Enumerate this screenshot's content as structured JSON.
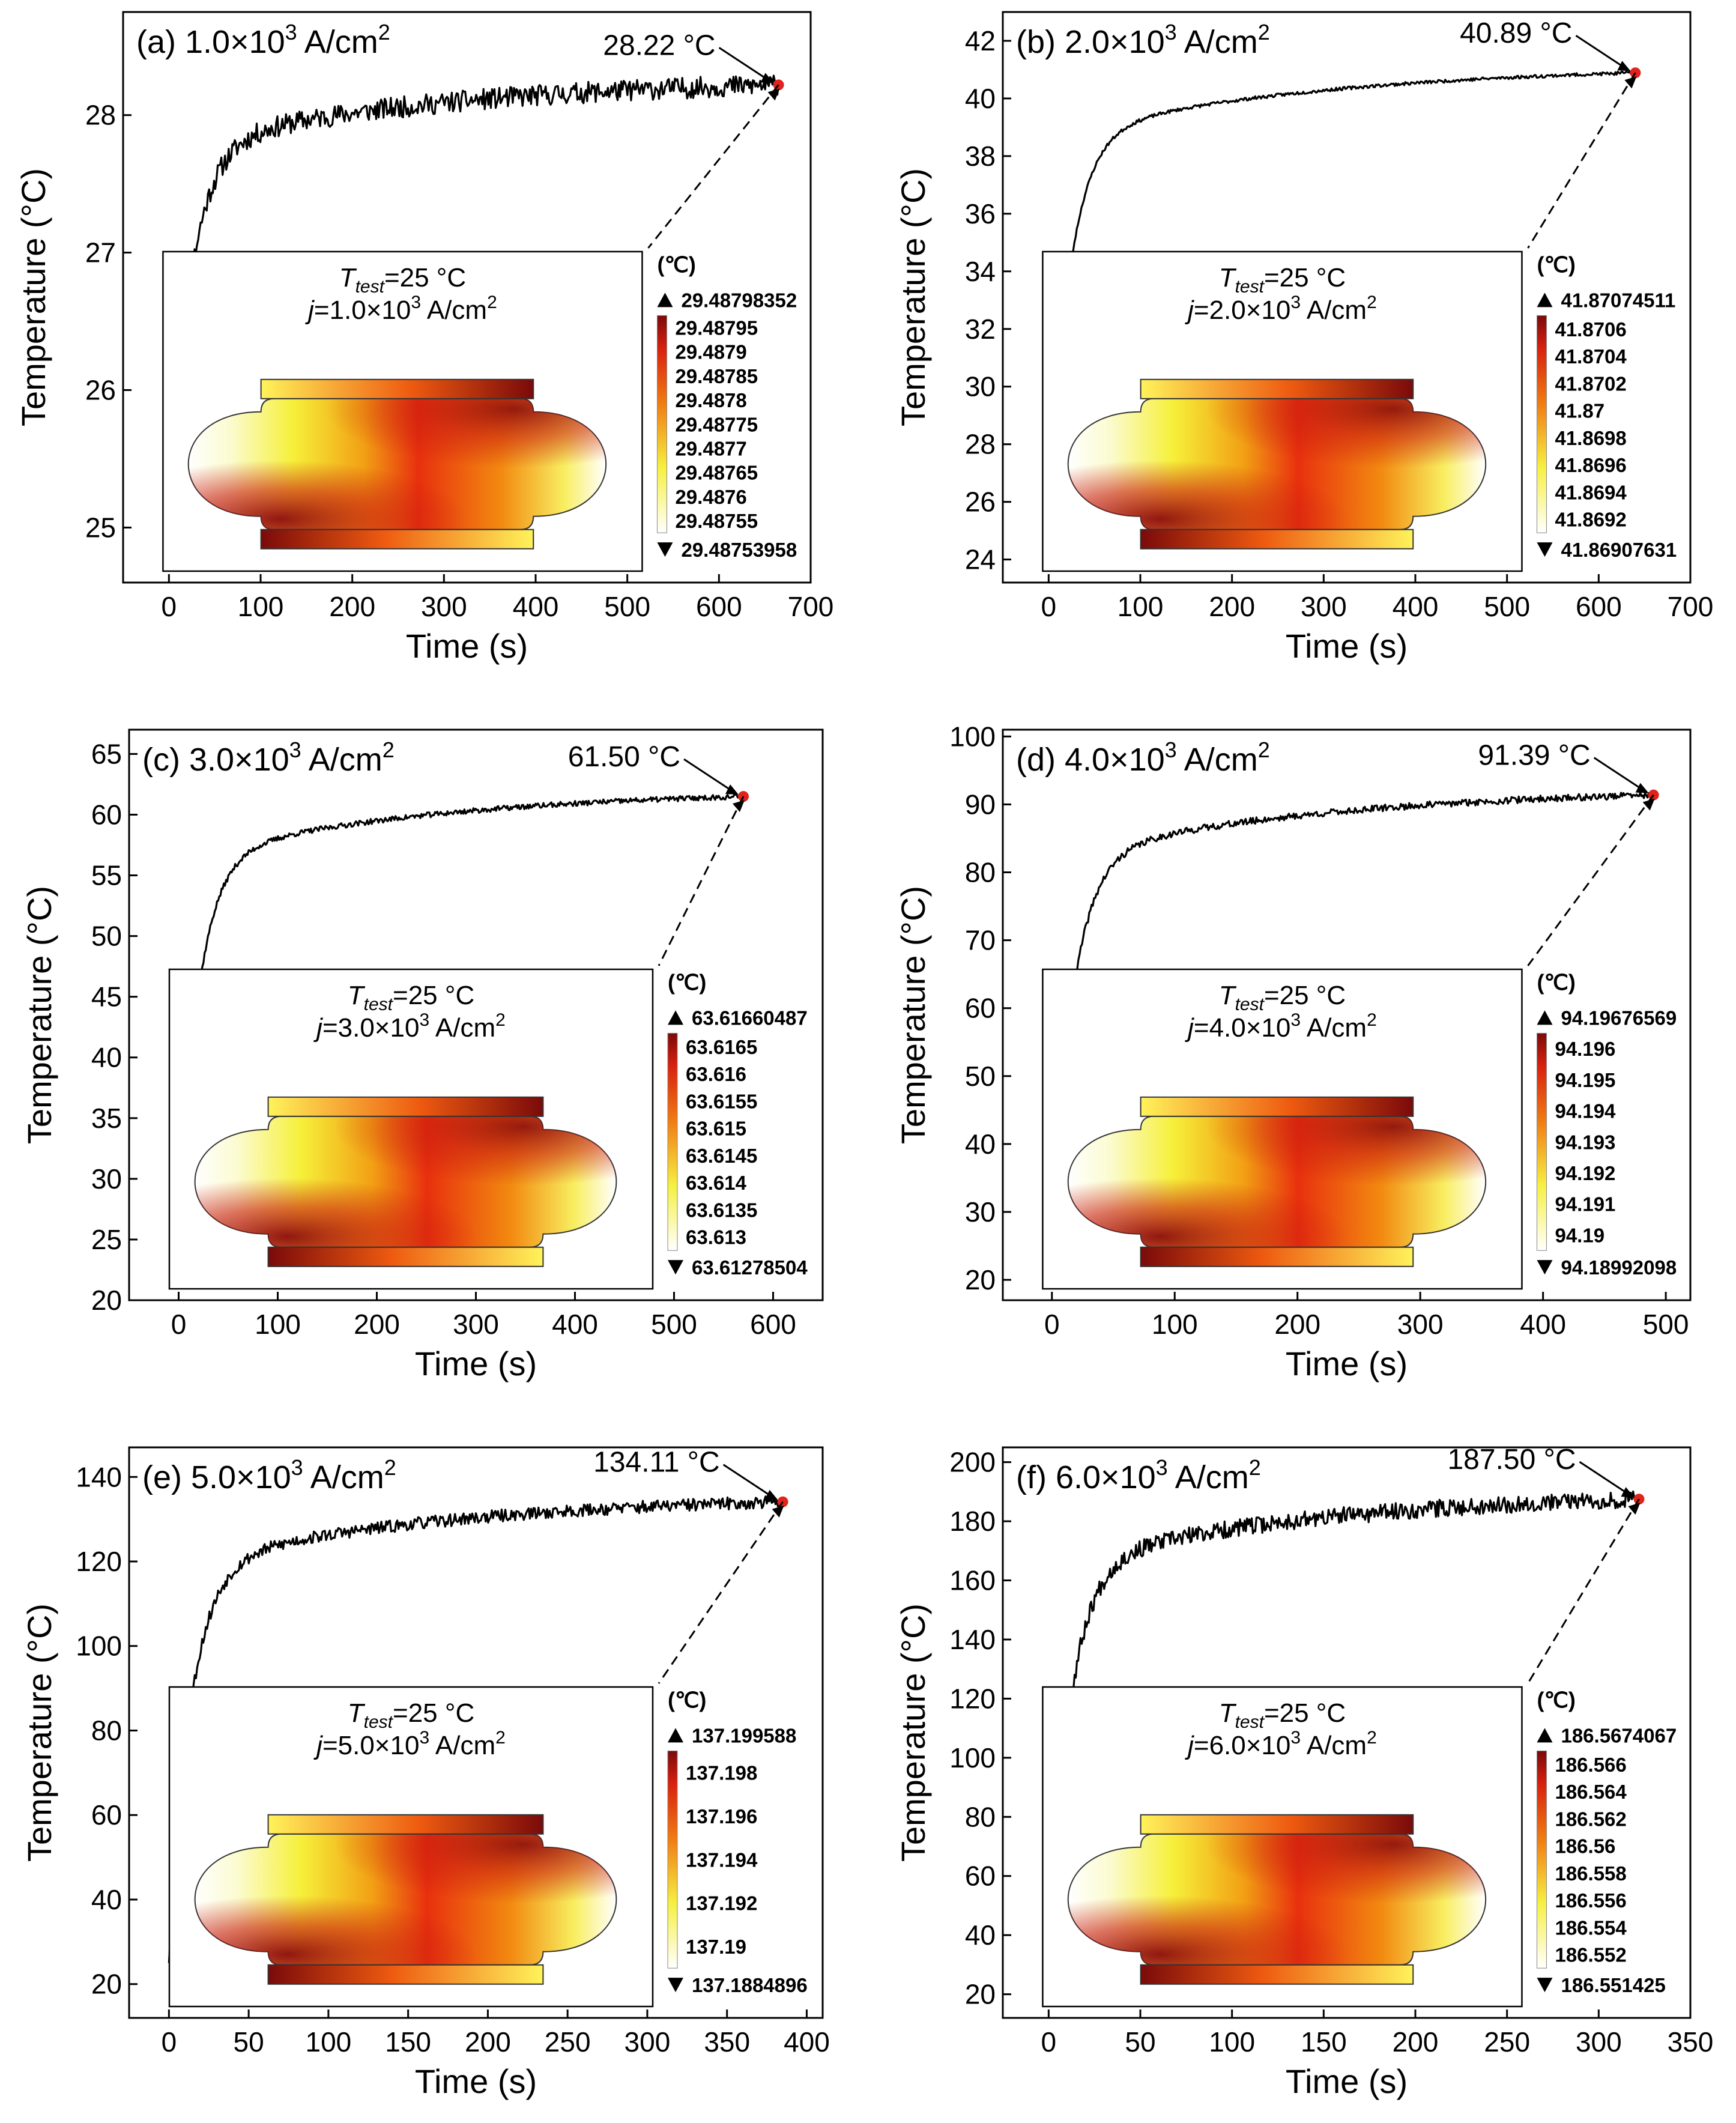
{
  "chart_data": [
    {
      "type": "line",
      "panel": "(a)",
      "current_mantissa": "1.0",
      "current_exponent": "3",
      "current_unit": "A/cm",
      "xlabel": "Time (s)",
      "ylabel": "Temperature (°C)",
      "xlim": [
        -50,
        700
      ],
      "ylim": [
        24.6,
        28.75
      ],
      "xticks": [
        0,
        100,
        200,
        300,
        400,
        500,
        600,
        700
      ],
      "yticks": [
        25,
        26,
        27,
        28
      ],
      "curve": {
        "t_end": 665,
        "T0": 25,
        "Tf": 28.22,
        "noise": 0.06,
        "seed": 11
      },
      "end_point": {
        "x": 665,
        "y": 28.22
      },
      "end_label": "28.22 °C",
      "inset": {
        "t_test": "25 °C",
        "j_mantissa": "1.0",
        "j_exponent": "3",
        "unit": "(℃)",
        "max": "29.48798352",
        "min": "29.48753958",
        "levels": [
          "29.48795",
          "29.4879",
          "29.48785",
          "29.4878",
          "29.48775",
          "29.4877",
          "29.48765",
          "29.4876",
          "29.48755"
        ]
      }
    },
    {
      "type": "line",
      "panel": "(b)",
      "current_mantissa": "2.0",
      "current_exponent": "3",
      "current_unit": "A/cm",
      "xlabel": "Time (s)",
      "ylabel": "Temperature (°C)",
      "xlim": [
        -50,
        700
      ],
      "ylim": [
        23.2,
        43.0
      ],
      "xticks": [
        0,
        100,
        200,
        300,
        400,
        500,
        600,
        700
      ],
      "yticks": [
        24,
        26,
        28,
        30,
        32,
        34,
        36,
        38,
        40,
        42
      ],
      "curve": {
        "t_end": 640,
        "T0": 25,
        "Tf": 40.89,
        "noise": 0.12,
        "seed": 23
      },
      "end_point": {
        "x": 640,
        "y": 40.89
      },
      "end_label": "40.89 °C",
      "inset": {
        "t_test": "25 °C",
        "j_mantissa": "2.0",
        "j_exponent": "3",
        "unit": "(℃)",
        "max": "41.87074511",
        "min": "41.86907631",
        "levels": [
          "41.8706",
          "41.8704",
          "41.8702",
          "41.87",
          "41.8698",
          "41.8696",
          "41.8694",
          "41.8692"
        ]
      }
    },
    {
      "type": "line",
      "panel": "(c)",
      "current_mantissa": "3.0",
      "current_exponent": "3",
      "current_unit": "A/cm",
      "xlabel": "Time (s)",
      "ylabel": "Temperature (°C)",
      "xlim": [
        -50,
        650
      ],
      "ylim": [
        20,
        67
      ],
      "xticks": [
        0,
        100,
        200,
        300,
        400,
        500,
        600
      ],
      "yticks": [
        20,
        25,
        30,
        35,
        40,
        45,
        50,
        55,
        60,
        65
      ],
      "curve": {
        "t_end": 570,
        "T0": 25,
        "Tf": 61.5,
        "noise": 0.2,
        "seed": 37
      },
      "end_point": {
        "x": 570,
        "y": 61.5
      },
      "end_label": "61.50 °C",
      "inset": {
        "t_test": "25 °C",
        "j_mantissa": "3.0",
        "j_exponent": "3",
        "unit": "(℃)",
        "max": "63.61660487",
        "min": "63.61278504",
        "levels": [
          "63.6165",
          "63.616",
          "63.6155",
          "63.615",
          "63.6145",
          "63.614",
          "63.6135",
          "63.613"
        ]
      }
    },
    {
      "type": "line",
      "panel": "(d)",
      "current_mantissa": "4.0",
      "current_exponent": "3",
      "current_unit": "A/cm",
      "xlabel": "Time (s)",
      "ylabel": "Temperature (°C)",
      "xlim": [
        -40,
        520
      ],
      "ylim": [
        17,
        101
      ],
      "xticks": [
        0,
        100,
        200,
        300,
        400,
        500
      ],
      "yticks": [
        20,
        30,
        40,
        50,
        60,
        70,
        80,
        90,
        100
      ],
      "curve": {
        "t_end": 490,
        "T0": 25,
        "Tf": 91.39,
        "noise": 0.25,
        "seed": 41
      },
      "end_point": {
        "x": 490,
        "y": 91.39
      },
      "end_label": "91.39 °C",
      "inset": {
        "t_test": "25 °C",
        "j_mantissa": "4.0",
        "j_exponent": "3",
        "unit": "(℃)",
        "max": "94.19676569",
        "min": "94.18992098",
        "levels": [
          "94.196",
          "94.195",
          "94.194",
          "94.193",
          "94.192",
          "94.191",
          "94.19"
        ]
      }
    },
    {
      "type": "line",
      "panel": "(e)",
      "current_mantissa": "5.0",
      "current_exponent": "3",
      "current_unit": "A/cm",
      "xlabel": "Time (s)",
      "ylabel": "Temperature (°C)",
      "xlim": [
        -25,
        410
      ],
      "ylim": [
        12,
        147
      ],
      "xticks": [
        0,
        50,
        100,
        150,
        200,
        250,
        300,
        350,
        400
      ],
      "yticks": [
        20,
        40,
        60,
        80,
        100,
        120,
        140
      ],
      "curve": {
        "t_end": 385,
        "T0": 25,
        "Tf": 134.11,
        "noise": 0.45,
        "seed": 53
      },
      "end_point": {
        "x": 385,
        "y": 134.11
      },
      "end_label": "134.11 °C",
      "inset": {
        "t_test": "25 °C",
        "j_mantissa": "5.0",
        "j_exponent": "3",
        "unit": "(℃)",
        "max": "137.199588",
        "min": "137.1884896",
        "levels": [
          "137.198",
          "137.196",
          "137.194",
          "137.192",
          "137.19"
        ]
      }
    },
    {
      "type": "line",
      "panel": "(f)",
      "current_mantissa": "6.0",
      "current_exponent": "3",
      "current_unit": "A/cm",
      "xlabel": "Time (s)",
      "ylabel": "Temperature (°C)",
      "xlim": [
        -25,
        350
      ],
      "ylim": [
        12,
        205
      ],
      "xticks": [
        0,
        50,
        100,
        150,
        200,
        250,
        300,
        350
      ],
      "yticks": [
        20,
        40,
        60,
        80,
        100,
        120,
        140,
        160,
        180,
        200
      ],
      "curve": {
        "t_end": 322,
        "T0": 25,
        "Tf": 187.5,
        "noise": 0.6,
        "seed": 67
      },
      "end_point": {
        "x": 322,
        "y": 187.5
      },
      "end_label": "187.50 °C",
      "inset": {
        "t_test": "25 °C",
        "j_mantissa": "6.0",
        "j_exponent": "3",
        "unit": "(℃)",
        "max": "186.5674067",
        "min": "186.551425",
        "levels": [
          "186.566",
          "186.564",
          "186.562",
          "186.56",
          "186.558",
          "186.556",
          "186.554",
          "186.552"
        ]
      }
    }
  ]
}
